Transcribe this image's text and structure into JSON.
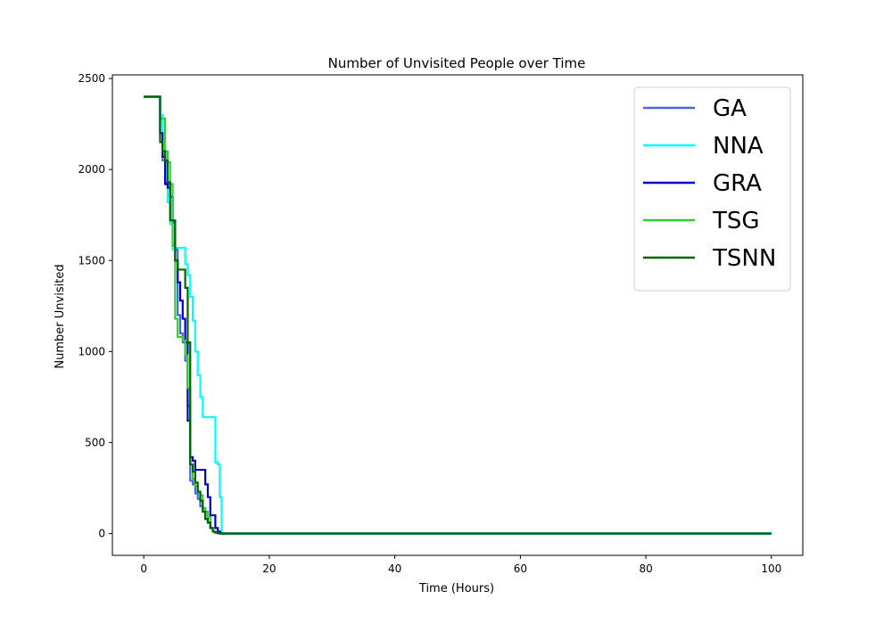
{
  "chart_data": {
    "type": "line",
    "title": "Number of Unvisited People over Time",
    "xlabel": "Time (Hours)",
    "ylabel": "Number Unvisited",
    "xlim": [
      -5,
      105
    ],
    "ylim": [
      -120,
      2520
    ],
    "xticks": [
      0,
      20,
      40,
      60,
      80,
      100
    ],
    "yticks": [
      0,
      500,
      1000,
      1500,
      2000,
      2500
    ],
    "grid": false,
    "legend_position": "top-right",
    "step": true,
    "series": [
      {
        "name": "GA",
        "color": "#4169e1",
        "x": [
          0,
          2.3,
          2.6,
          3.0,
          3.4,
          3.8,
          4.2,
          4.6,
          5.0,
          5.4,
          5.8,
          6.2,
          6.6,
          7.0,
          7.4,
          7.8,
          8.2,
          8.6,
          9.0,
          9.4,
          9.8,
          10.2,
          10.6,
          11.0,
          11.4,
          11.8,
          12.2,
          100
        ],
        "y": [
          2400,
          2400,
          2200,
          2050,
          1930,
          1920,
          1850,
          1720,
          1560,
          1200,
          1100,
          1050,
          950,
          700,
          290,
          270,
          220,
          190,
          150,
          120,
          80,
          60,
          30,
          10,
          5,
          2,
          0,
          0
        ]
      },
      {
        "name": "NNA",
        "color": "#00ffff",
        "x": [
          0,
          2.3,
          2.6,
          3.0,
          3.4,
          3.8,
          4.2,
          4.6,
          5.0,
          5.4,
          5.8,
          6.2,
          6.6,
          7.0,
          7.4,
          7.8,
          8.2,
          8.6,
          9.0,
          9.4,
          9.8,
          10.2,
          10.6,
          11.0,
          11.4,
          11.8,
          12.1,
          12.4,
          100
        ],
        "y": [
          2400,
          2400,
          2300,
          2100,
          1980,
          1820,
          1700,
          1560,
          1570,
          1570,
          1570,
          1570,
          1480,
          1420,
          1300,
          1170,
          1000,
          870,
          750,
          640,
          640,
          640,
          640,
          640,
          390,
          380,
          200,
          0,
          0
        ]
      },
      {
        "name": "GRA",
        "color": "#0000cd",
        "x": [
          0,
          2.3,
          2.6,
          3.0,
          3.4,
          3.8,
          4.2,
          4.6,
          5.0,
          5.4,
          5.8,
          6.2,
          6.6,
          7.0,
          7.4,
          7.8,
          8.2,
          8.6,
          9.0,
          9.4,
          9.8,
          10.2,
          10.6,
          11.0,
          11.4,
          11.8,
          12.2,
          100
        ],
        "y": [
          2400,
          2400,
          2200,
          2070,
          1920,
          1900,
          1850,
          1710,
          1500,
          1380,
          1280,
          1180,
          1050,
          620,
          420,
          400,
          350,
          350,
          350,
          350,
          270,
          200,
          100,
          100,
          30,
          10,
          0,
          0
        ]
      },
      {
        "name": "TSG",
        "color": "#32cd32",
        "x": [
          0,
          2.3,
          2.6,
          3.0,
          3.4,
          3.8,
          4.2,
          4.6,
          5.0,
          5.4,
          5.8,
          6.2,
          6.6,
          7.0,
          7.4,
          7.8,
          8.2,
          8.6,
          9.0,
          9.4,
          9.8,
          10.2,
          10.6,
          11.0,
          11.4,
          11.8,
          12.2,
          100
        ],
        "y": [
          2400,
          2400,
          2280,
          2280,
          2100,
          2040,
          1920,
          1580,
          1180,
          1080,
          1080,
          1060,
          980,
          800,
          380,
          300,
          260,
          230,
          210,
          140,
          120,
          90,
          30,
          10,
          5,
          2,
          0,
          0
        ]
      },
      {
        "name": "TSNN",
        "color": "#006400",
        "x": [
          0,
          2.3,
          2.6,
          3.0,
          3.4,
          3.8,
          4.2,
          4.6,
          5.0,
          5.4,
          5.8,
          6.2,
          6.6,
          7.0,
          7.4,
          7.8,
          8.2,
          8.6,
          9.0,
          9.4,
          9.8,
          10.2,
          10.6,
          11.0,
          11.4,
          11.8,
          12.2,
          100
        ],
        "y": [
          2400,
          2400,
          2150,
          2100,
          2050,
          1930,
          1720,
          1720,
          1500,
          1450,
          1450,
          1450,
          1350,
          1050,
          380,
          340,
          280,
          230,
          180,
          120,
          80,
          60,
          30,
          10,
          5,
          2,
          0,
          0
        ]
      }
    ]
  }
}
